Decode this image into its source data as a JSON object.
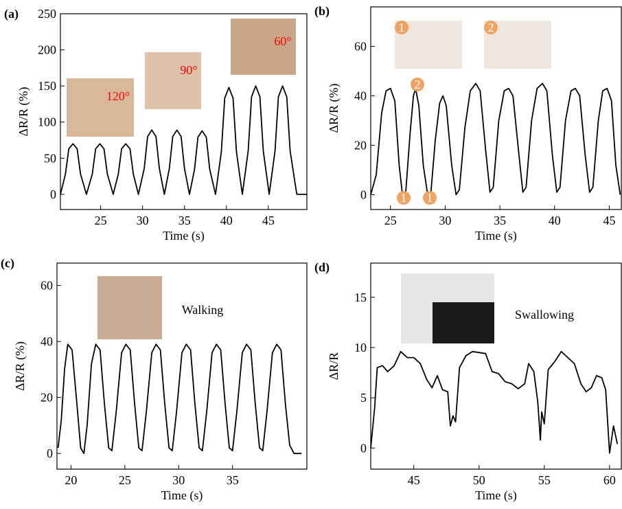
{
  "chart_data": [
    {
      "type": "line",
      "title": "(a)",
      "xlabel": "Time (s)",
      "ylabel": "ΔR/R (%)",
      "color": "#000000",
      "x": [
        20.2,
        20.8,
        21.2,
        21.7,
        22.2,
        22.6,
        23.3,
        24.0,
        24.4,
        24.9,
        25.4,
        25.8,
        26.5,
        27.1,
        27.5,
        28.0,
        28.5,
        28.9,
        29.5,
        30.2,
        30.6,
        31.1,
        31.6,
        32.0,
        32.6,
        33.2,
        33.6,
        34.1,
        34.6,
        35.0,
        35.6,
        36.2,
        36.6,
        37.1,
        37.6,
        38.0,
        38.7,
        39.4,
        39.8,
        40.3,
        40.8,
        41.2,
        41.9,
        42.6,
        43.0,
        43.5,
        44.0,
        44.4,
        45.1,
        45.8,
        46.2,
        46.7,
        47.2,
        47.6,
        48.4,
        49.6
      ],
      "values": [
        0,
        28,
        63,
        70,
        63,
        28,
        0,
        28,
        63,
        70,
        63,
        28,
        0,
        28,
        63,
        70,
        63,
        28,
        0,
        36,
        80,
        89,
        80,
        36,
        0,
        36,
        80,
        89,
        80,
        36,
        0,
        35,
        79,
        88,
        79,
        35,
        0,
        59,
        133,
        148,
        133,
        59,
        0,
        60,
        135,
        150,
        135,
        60,
        0,
        60,
        135,
        150,
        135,
        60,
        0,
        0
      ],
      "xlim": [
        20.2,
        49.6
      ],
      "ylim": [
        -21,
        250
      ],
      "xticks": [
        25,
        30,
        35,
        40,
        45
      ],
      "yticks": [
        0,
        50,
        100,
        150,
        200,
        250
      ],
      "annotations": [
        "120°",
        "90°",
        "60°"
      ]
    },
    {
      "type": "line",
      "title": "(b)",
      "xlabel": "Time (s)",
      "ylabel": "ΔR/R (%)",
      "color": "#000000",
      "x": [
        23.2,
        23.7,
        24.2,
        24.6,
        25.0,
        25.4,
        25.8,
        26.1,
        26.4,
        26.8,
        27.1,
        27.3,
        27.6,
        28.0,
        28.4,
        28.7,
        29.1,
        29.5,
        29.8,
        30.1,
        30.6,
        31.0,
        31.3,
        31.8,
        32.3,
        32.8,
        33.2,
        33.7,
        34.1,
        34.4,
        34.9,
        35.4,
        35.8,
        36.2,
        36.7,
        37.1,
        37.4,
        37.9,
        38.4,
        38.9,
        39.3,
        39.8,
        40.2,
        40.5,
        41.0,
        41.5,
        41.9,
        42.3,
        42.8,
        43.2,
        43.5,
        44.0,
        44.4,
        44.8,
        45.2,
        45.6,
        46.0
      ],
      "values": [
        0,
        8,
        33,
        42,
        43,
        38,
        12,
        0,
        1,
        25,
        40,
        43,
        36,
        12,
        0,
        1,
        22,
        37,
        40,
        36,
        12,
        0,
        2,
        27,
        42,
        45,
        42,
        18,
        1,
        3,
        30,
        42,
        43,
        40,
        18,
        1,
        3,
        30,
        43,
        45,
        42,
        16,
        1,
        3,
        30,
        42,
        43,
        40,
        16,
        1,
        3,
        30,
        42,
        43,
        38,
        12,
        0
      ],
      "xlim": [
        23.2,
        46.1
      ],
      "ylim": [
        -6,
        76
      ],
      "xticks": [
        25,
        30,
        35,
        40,
        45
      ],
      "yticks": [
        0,
        20,
        40,
        60
      ],
      "annotations": [
        "1",
        "2",
        "2",
        "1",
        "1"
      ]
    },
    {
      "type": "line",
      "title": "(c)",
      "xlabel": "Time (s)",
      "ylabel": "ΔR/R (%)",
      "color": "#000000",
      "x": [
        18.8,
        19.1,
        19.4,
        19.7,
        20.1,
        20.5,
        20.9,
        21.2,
        21.5,
        21.9,
        22.3,
        22.7,
        23.1,
        23.5,
        23.8,
        24.2,
        24.7,
        25.1,
        25.5,
        25.9,
        26.3,
        26.6,
        27.0,
        27.5,
        27.9,
        28.3,
        28.7,
        29.1,
        29.4,
        29.8,
        30.3,
        30.7,
        31.1,
        31.5,
        31.9,
        32.2,
        32.6,
        33.1,
        33.5,
        33.9,
        34.3,
        34.7,
        35.0,
        35.4,
        35.9,
        36.3,
        36.7,
        37.1,
        37.5,
        37.8,
        38.2,
        38.7,
        39.1,
        39.5,
        39.9,
        40.3,
        40.7,
        41.4
      ],
      "values": [
        2,
        12,
        30,
        39,
        37,
        20,
        2,
        0,
        10,
        32,
        39,
        37,
        18,
        2,
        1,
        15,
        36,
        39,
        37,
        18,
        2,
        1,
        15,
        36,
        39,
        37,
        18,
        2,
        1,
        15,
        36,
        39,
        37,
        18,
        2,
        1,
        15,
        36,
        39,
        37,
        18,
        2,
        1,
        15,
        36,
        39,
        37,
        18,
        2,
        1,
        15,
        36,
        39,
        37,
        18,
        3,
        0,
        0
      ],
      "xlim": [
        18.7,
        41.9
      ],
      "ylim": [
        -5.6,
        68
      ],
      "xticks": [
        20,
        25,
        30,
        35
      ],
      "yticks": [
        0,
        20,
        40,
        60
      ],
      "annotations": [
        "Walking"
      ]
    },
    {
      "type": "line",
      "title": "(d)",
      "xlabel": "Time (s)",
      "ylabel": "ΔR/R",
      "color": "#000000",
      "x": [
        41.7,
        42.0,
        42.2,
        42.6,
        43.0,
        43.5,
        44.0,
        44.5,
        45.0,
        45.5,
        46.0,
        46.4,
        46.8,
        47.2,
        47.6,
        47.8,
        48.0,
        48.2,
        48.5,
        49.0,
        49.5,
        50.0,
        50.5,
        51.0,
        51.5,
        52.0,
        52.5,
        53.0,
        53.5,
        53.8,
        54.2,
        54.5,
        54.7,
        54.8,
        55.0,
        55.3,
        55.8,
        56.3,
        56.8,
        57.3,
        57.8,
        58.2,
        58.6,
        59.0,
        59.4,
        59.7,
        60.0,
        60.3,
        60.6
      ],
      "values": [
        0,
        4,
        8,
        8.2,
        7.6,
        8.2,
        9.6,
        9.0,
        9.0,
        8.4,
        6.8,
        6.0,
        7.2,
        5.8,
        5.6,
        2.2,
        3.2,
        2.6,
        8.0,
        9.2,
        9.6,
        9.5,
        9.4,
        7.6,
        7.4,
        6.6,
        6.4,
        5.9,
        6.4,
        8.4,
        7.6,
        4.6,
        0.8,
        3.6,
        2.4,
        7.8,
        8.6,
        9.6,
        9.0,
        8.4,
        6.4,
        5.6,
        6.0,
        7.2,
        7.0,
        5.8,
        -0.5,
        2.2,
        0.4
      ],
      "xlim": [
        41.7,
        60.9
      ],
      "ylim": [
        -2.1,
        18.4
      ],
      "xticks": [
        45,
        50,
        55,
        60
      ],
      "yticks": [
        0,
        5,
        10,
        15
      ],
      "annotations": [
        "Swallowing"
      ]
    }
  ]
}
